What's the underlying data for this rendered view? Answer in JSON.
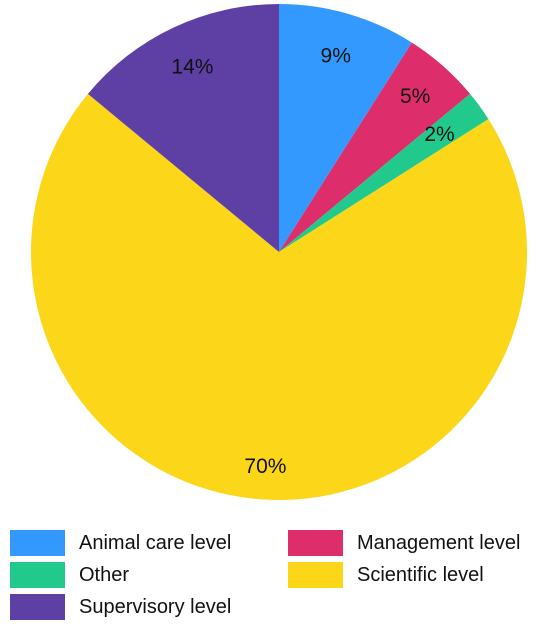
{
  "chart_data": {
    "type": "pie",
    "slices": [
      {
        "label": "Animal care level",
        "value": 9,
        "display": "9%",
        "color": "#3399FF"
      },
      {
        "label": "Management level",
        "value": 5,
        "display": "5%",
        "color": "#DD2D6B"
      },
      {
        "label": "Other",
        "value": 2,
        "display": "2%",
        "color": "#22C98C"
      },
      {
        "label": "Scientific level",
        "value": 70,
        "display": "70%",
        "color": "#FCD619"
      },
      {
        "label": "Supervisory level",
        "value": 14,
        "display": "14%",
        "color": "#5E3FA3"
      }
    ],
    "legend": {
      "placement": "bottom",
      "order": [
        "Animal care level",
        "Management level",
        "Other",
        "Scientific level",
        "Supervisory level"
      ]
    },
    "start_angle": "12 o'clock, clockwise"
  }
}
